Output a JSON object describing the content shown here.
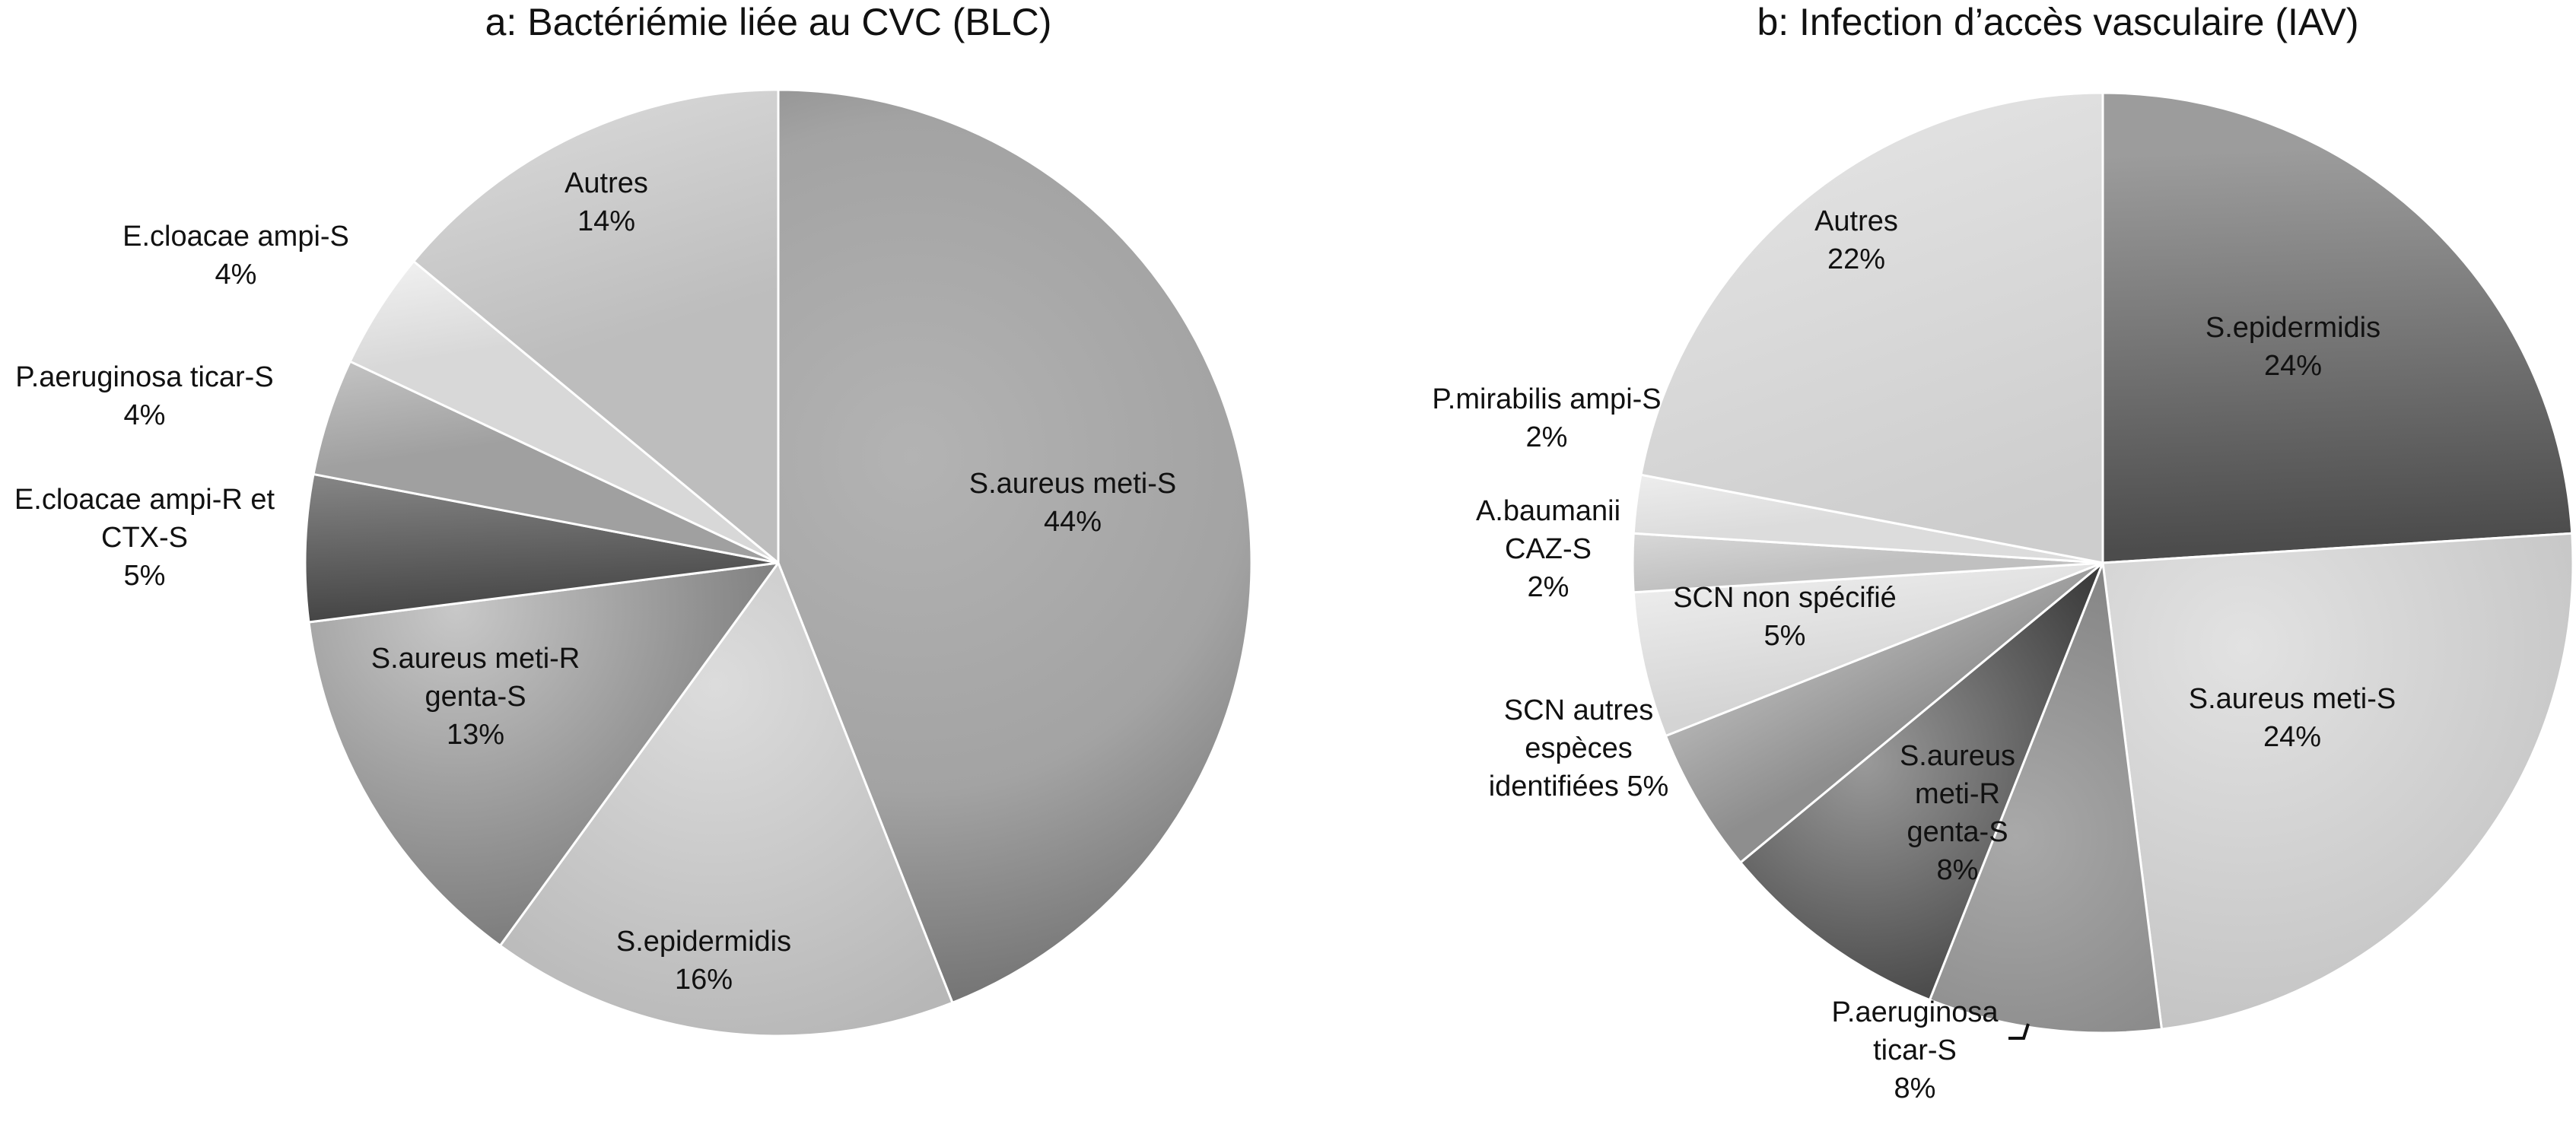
{
  "chart_data": [
    {
      "type": "pie",
      "title": "a: Bactériémie liée au CVC (BLC)",
      "slices": [
        {
          "label": [
            "S.aureus meti-S",
            "44%"
          ],
          "value": 44
        },
        {
          "label": [
            "S.epidermidis",
            "16%"
          ],
          "value": 16
        },
        {
          "label": [
            "S.aureus meti-R",
            "genta-S",
            "13%"
          ],
          "value": 13
        },
        {
          "label": [
            "E.cloacae ampi-R et",
            "CTX-S",
            "5%"
          ],
          "value": 5
        },
        {
          "label": [
            "P.aeruginosa ticar-S",
            "4%"
          ],
          "value": 4
        },
        {
          "label": [
            "E.cloacae ampi-S",
            "4%"
          ],
          "value": 4
        },
        {
          "label": [
            "Autres",
            "14%"
          ],
          "value": 14
        }
      ]
    },
    {
      "type": "pie",
      "title": "b: Infection d’accès vasculaire (IAV)",
      "slices": [
        {
          "label": [
            "S.epidermidis",
            "24%"
          ],
          "value": 24
        },
        {
          "label": [
            "S.aureus meti-S",
            "24%"
          ],
          "value": 24
        },
        {
          "label": [
            "P.aeruginosa",
            "ticar-S",
            "8%"
          ],
          "value": 8
        },
        {
          "label": [
            "S.aureus",
            "meti-R",
            "genta-S",
            "8%"
          ],
          "value": 8
        },
        {
          "label": [
            "SCN autres",
            "espèces",
            "identifiées 5%"
          ],
          "value": 5
        },
        {
          "label": [
            "SCN non spécifié",
            "5%"
          ],
          "value": 5
        },
        {
          "label": [
            "A.baumanii",
            "CAZ-S",
            "2%"
          ],
          "value": 2
        },
        {
          "label": [
            "P.mirabilis ampi-S",
            "2%"
          ],
          "value": 2
        },
        {
          "label": [
            "Autres",
            "22%"
          ],
          "value": 22
        }
      ]
    }
  ]
}
